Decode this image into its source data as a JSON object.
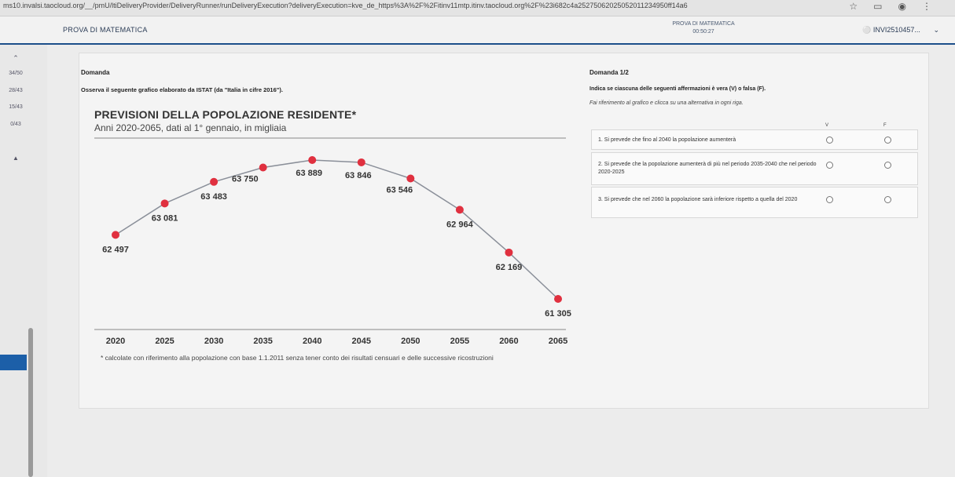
{
  "browser": {
    "url": "ms10.invalsi.taocloud.org/__/pmU/ltiDeliveryProvider/DeliveryRunner/runDeliveryExecution?deliveryExecution=kve_de_https%3A%2F%2Fitinv11mtp.itinv.taocloud.org%2F%23i682c4a2527506202505201123495​0ff14a6"
  },
  "header": {
    "title": "PROVA DI MATEMATICA",
    "timer_label": "PROVA DI MATEMATICA",
    "timer": "00:50:27",
    "user": "INVI2510457..."
  },
  "sidebar": {
    "items": [
      "34/50",
      "28/43",
      "15/43",
      "0/43"
    ]
  },
  "question": {
    "heading": "Domanda",
    "text": "Osserva il seguente grafico elaborato da ISTAT (da \"Italia in cifre 2016\")."
  },
  "chart_data": {
    "type": "line",
    "title": "PREVISIONI DELLA POPOLAZIONE RESIDENTE*",
    "subtitle": "Anni 2020-2065, dati al 1° gennaio, in migliaia",
    "x": [
      2020,
      2025,
      2030,
      2035,
      2040,
      2045,
      2050,
      2055,
      2060,
      2065
    ],
    "x_labels": [
      "2020",
      "2025",
      "2030",
      "2035",
      "2040",
      "2045",
      "2050",
      "2055",
      "2060",
      "2065"
    ],
    "values": [
      62497,
      63081,
      63483,
      63750,
      63889,
      63846,
      63546,
      62964,
      62169,
      61305
    ],
    "value_labels": [
      "62 497",
      "63 081",
      "63 483",
      "63 750",
      "63 889",
      "63 846",
      "63 546",
      "62 964",
      "62 169",
      "61 305"
    ],
    "footnote": "* calcolate con riferimento alla popolazione con base 1.1.2011 senza tener conto dei risultati censuari e delle successive ricostruzioni",
    "colors": {
      "line": "#8a8f99",
      "marker": "#e0303f"
    }
  },
  "answer": {
    "heading": "Domanda 1/2",
    "instruction": "Indica se ciascuna delle seguenti affermazioni è vera (V) o falsa (F).",
    "hint": "Fai riferimento al grafico e clicca su una alternativa in ogni riga.",
    "col_true": "V",
    "col_false": "F",
    "rows": [
      "1. Si prevede che fino al 2040 la popolazione aumenterà",
      "2. Si prevede che la popolazione aumenterà di più nel periodo 2035-2040 che nel periodo 2020-2025",
      "3. Si prevede che nel 2060 la popolazione sarà inferiore rispetto a quella del 2020"
    ]
  }
}
